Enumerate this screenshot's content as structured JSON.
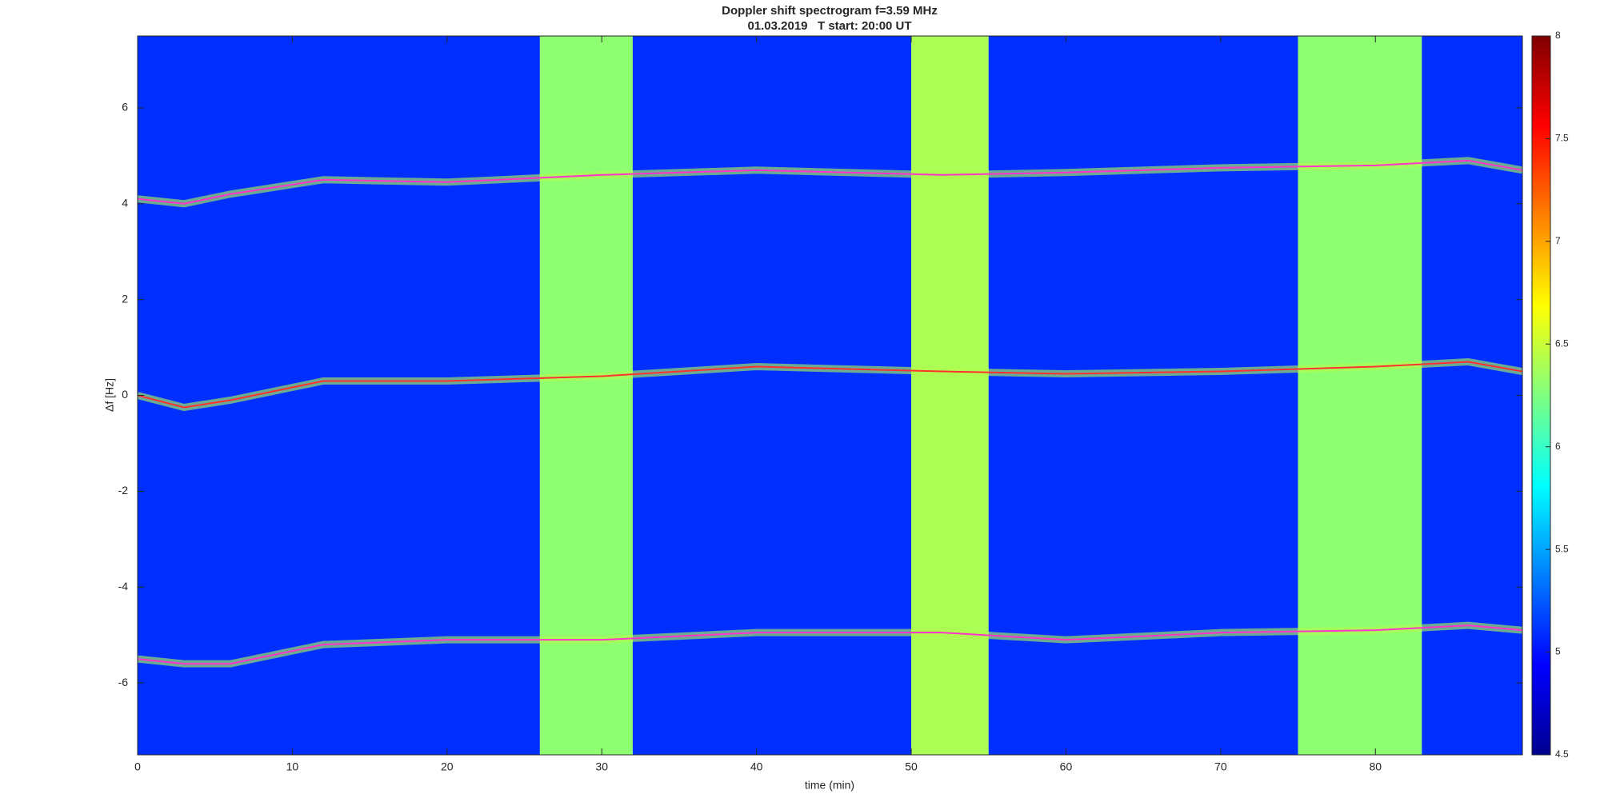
{
  "chart_data": {
    "type": "spectrogram",
    "title": "Doppler shift spectrogram f=3.59 MHz",
    "subtitle": "01.03.2019   T start: 20:00 UT",
    "xlabel": "time (min)",
    "ylabel": "Δf [Hz]",
    "xlim": [
      0,
      89.5
    ],
    "ylim": [
      -7.5,
      7.5
    ],
    "xticks": [
      0,
      10,
      20,
      30,
      40,
      50,
      60,
      70,
      80
    ],
    "yticks": [
      -6,
      -4,
      -2,
      0,
      2,
      4,
      6
    ],
    "colormap": "jet",
    "clim": [
      4.5,
      8
    ],
    "cticks": [
      4.5,
      5,
      5.5,
      6,
      6.5,
      7,
      7.5,
      8
    ],
    "column_edges": [
      0,
      26,
      32,
      50,
      55,
      75,
      83,
      89.5
    ],
    "column_levels": [
      5.1,
      6.3,
      5.1,
      6.4,
      5.1,
      6.3,
      5.1
    ],
    "x": [
      0,
      3,
      6,
      12,
      20,
      30,
      40,
      52,
      60,
      70,
      80,
      86,
      89.5
    ],
    "series": [
      {
        "color": "#ff33cc",
        "values": [
          4.1,
          4.0,
          4.2,
          4.5,
          4.45,
          4.6,
          4.7,
          4.6,
          4.65,
          4.75,
          4.8,
          4.9,
          4.7
        ]
      },
      {
        "color": "#ff3030",
        "values": [
          0,
          -0.25,
          -0.1,
          0.3,
          0.3,
          0.4,
          0.6,
          0.5,
          0.45,
          0.5,
          0.6,
          0.7,
          0.5
        ]
      },
      {
        "color": "#ff33cc",
        "values": [
          -5.5,
          -5.6,
          -5.6,
          -5.2,
          -5.1,
          -5.1,
          -4.95,
          -4.95,
          -5.1,
          -4.95,
          -4.9,
          -4.8,
          -4.9
        ]
      }
    ]
  }
}
